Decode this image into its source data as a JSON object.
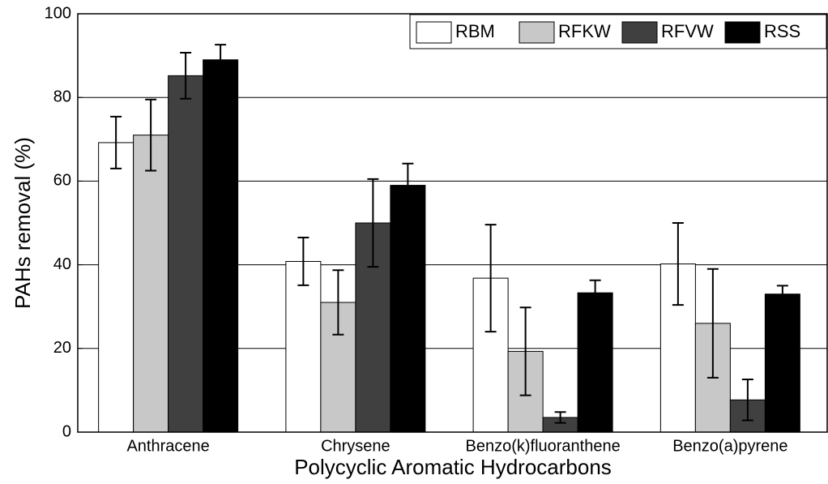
{
  "chart_data": {
    "type": "bar",
    "xlabel": "Polycyclic Aromatic Hydrocarbons",
    "ylabel": "PAHs removal (%)",
    "categories": [
      "Anthracene",
      "Chrysene",
      "Benzo(k)fluoranthene",
      "Benzo(a)pyrene"
    ],
    "series": [
      {
        "name": "RBM",
        "color": "#ffffff",
        "values": [
          69.2,
          40.8,
          36.8,
          40.2
        ],
        "errors": [
          6.2,
          5.7,
          12.8,
          9.8
        ]
      },
      {
        "name": "RFKW",
        "color": "#c8c8c8",
        "values": [
          71,
          31,
          19.3,
          26
        ],
        "errors": [
          8.5,
          7.7,
          10.5,
          13
        ]
      },
      {
        "name": "RFVW",
        "color": "#404040",
        "values": [
          85.2,
          50,
          3.5,
          7.7
        ],
        "errors": [
          5.5,
          10.5,
          1.3,
          4.9
        ]
      },
      {
        "name": "RSS",
        "color": "#000000",
        "values": [
          89,
          59,
          33.3,
          33
        ],
        "errors": [
          3.6,
          5.2,
          3,
          2
        ]
      }
    ],
    "ylim": [
      0,
      100
    ],
    "yticks": [
      0,
      20,
      40,
      60,
      80,
      100
    ],
    "grid": true,
    "legend": "upper right"
  }
}
